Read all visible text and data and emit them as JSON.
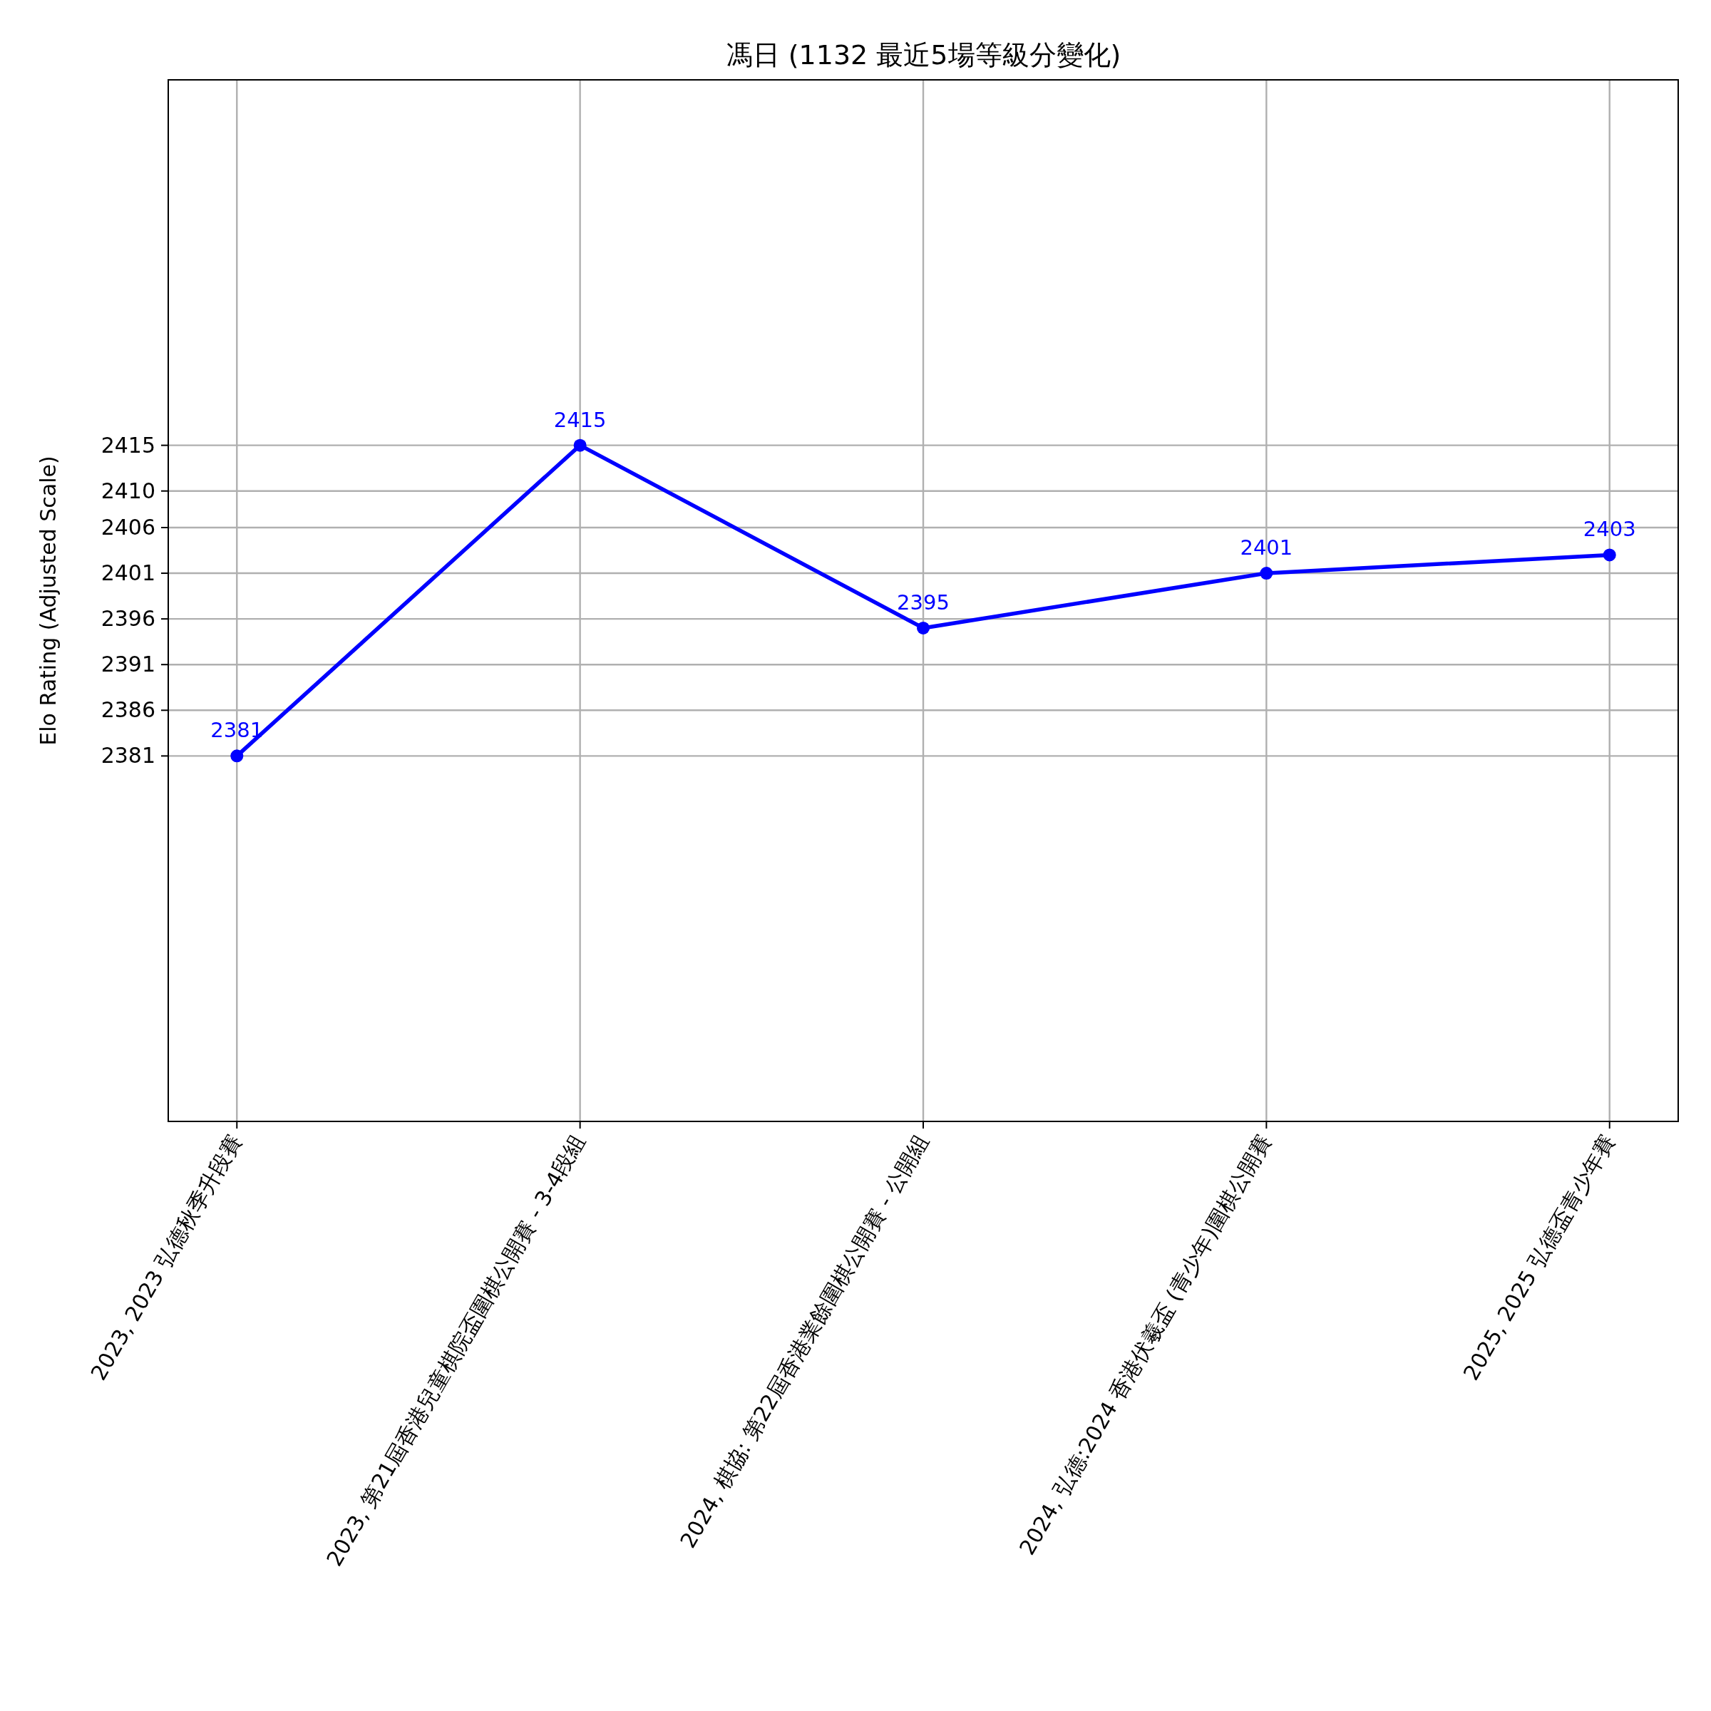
{
  "chart_data": {
    "type": "line",
    "title": "馮日 (1132 最近5場等級分變化)",
    "ylabel": "Elo Rating (Adjusted Scale)",
    "categories": [
      "2023, 2023 弘德秋季升段賽",
      "2023, 第21屆香港兒童棋院盃圍棋公開賽 - 3-4段組",
      "2024, 棋協: 第22屆香港業餘圍棋公開賽 - 公開組",
      "2024, 弘德:2024 香港伏羲盃 (青少年)圍棋公開賽",
      "2025, 2025 弘德盃青少年賽"
    ],
    "series": [
      {
        "color": "#0000ff",
        "values": [
          2381,
          2415,
          2395,
          2401,
          2403
        ]
      }
    ],
    "ylim": [
      2341,
      2455
    ],
    "yticks": [
      2381,
      2386,
      2391,
      2396,
      2401,
      2406,
      2410,
      2415
    ],
    "grid": true,
    "marker": "circle",
    "line_style": "solid",
    "data_labels": true
  }
}
